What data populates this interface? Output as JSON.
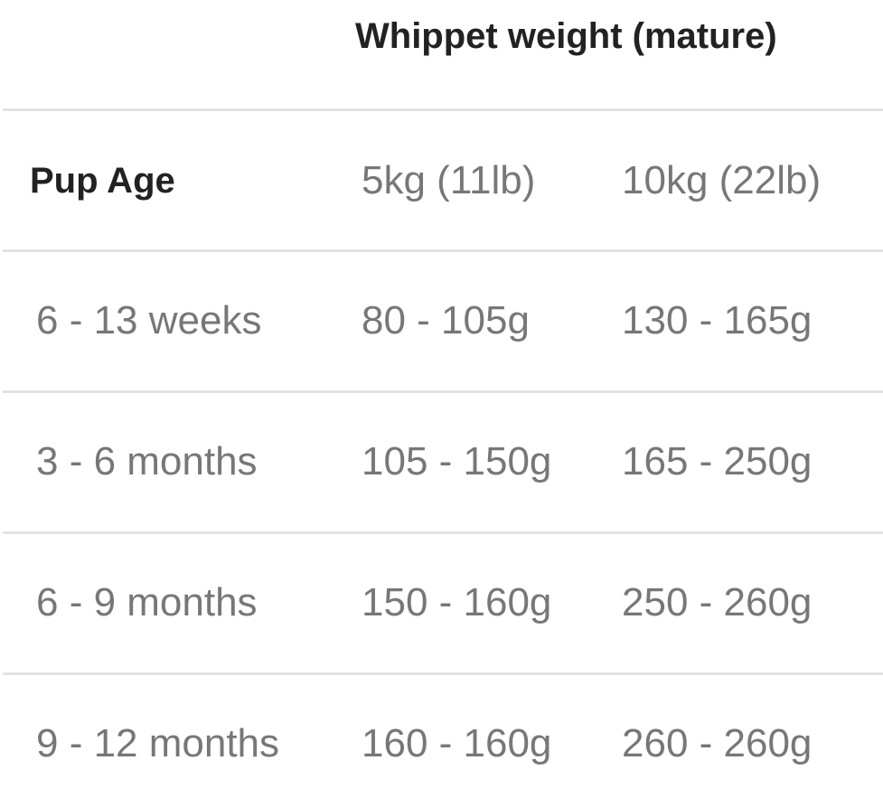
{
  "table": {
    "title": "Whippet weight (mature)",
    "columns": [
      "Pup Age",
      "5kg (11lb)",
      "10kg (22lb)"
    ],
    "rows": [
      [
        "6 - 13 weeks",
        "80 - 105g",
        "130 - 165g"
      ],
      [
        "3 - 6 months",
        "105 - 150g",
        "165 - 250g"
      ],
      [
        "6 - 9 months",
        "150 - 160g",
        "250 - 260g"
      ],
      [
        "9 - 12 months",
        "160 - 160g",
        "260 - 260g"
      ]
    ]
  }
}
